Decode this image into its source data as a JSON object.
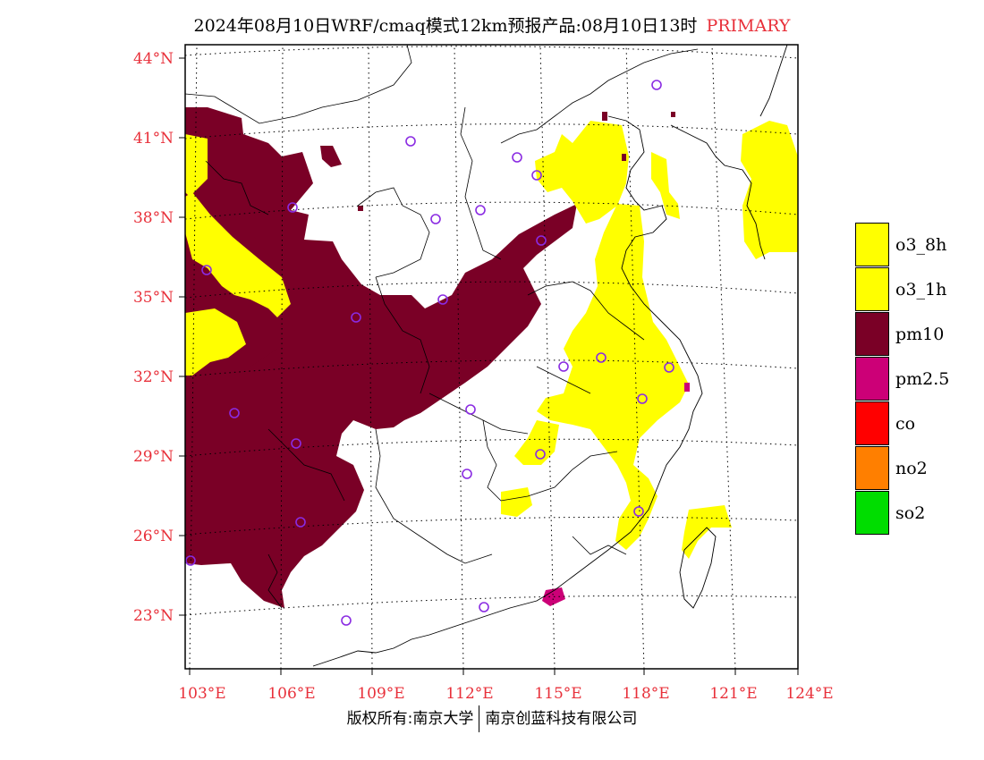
{
  "title": {
    "main": "2024年08月10日WRF/cmaq模式12km预报产品:08月10日13时",
    "tag": "PRIMARY",
    "tag_color": "#e8303a"
  },
  "lat_labels": [
    "44°N",
    "41°N",
    "38°N",
    "35°N",
    "32°N",
    "29°N",
    "26°N",
    "23°N"
  ],
  "lon_labels": [
    "103°E",
    "106°E",
    "109°E",
    "112°E",
    "115°E",
    "118°E",
    "121°E",
    "124°E"
  ],
  "label_color": "#e8303a",
  "pollutant_colors": {
    "pm10": "#7a0026",
    "o3": "#ffff00",
    "pm25": "#cc0077",
    "station": "#8a2be2"
  },
  "legend": [
    {
      "label": "o3_8h",
      "color": "#ffff00"
    },
    {
      "label": "o3_1h",
      "color": "#ffff00"
    },
    {
      "label": "pm10",
      "color": "#7a0026"
    },
    {
      "label": "pm2.5",
      "color": "#cc0077"
    },
    {
      "label": "co",
      "color": "#ff0000"
    },
    {
      "label": "no2",
      "color": "#ff7f00"
    },
    {
      "label": "so2",
      "color": "#00dd00"
    }
  ],
  "copyright": {
    "left": "版权所有:南京大学",
    "right": "南京创蓝科技有限公司"
  }
}
